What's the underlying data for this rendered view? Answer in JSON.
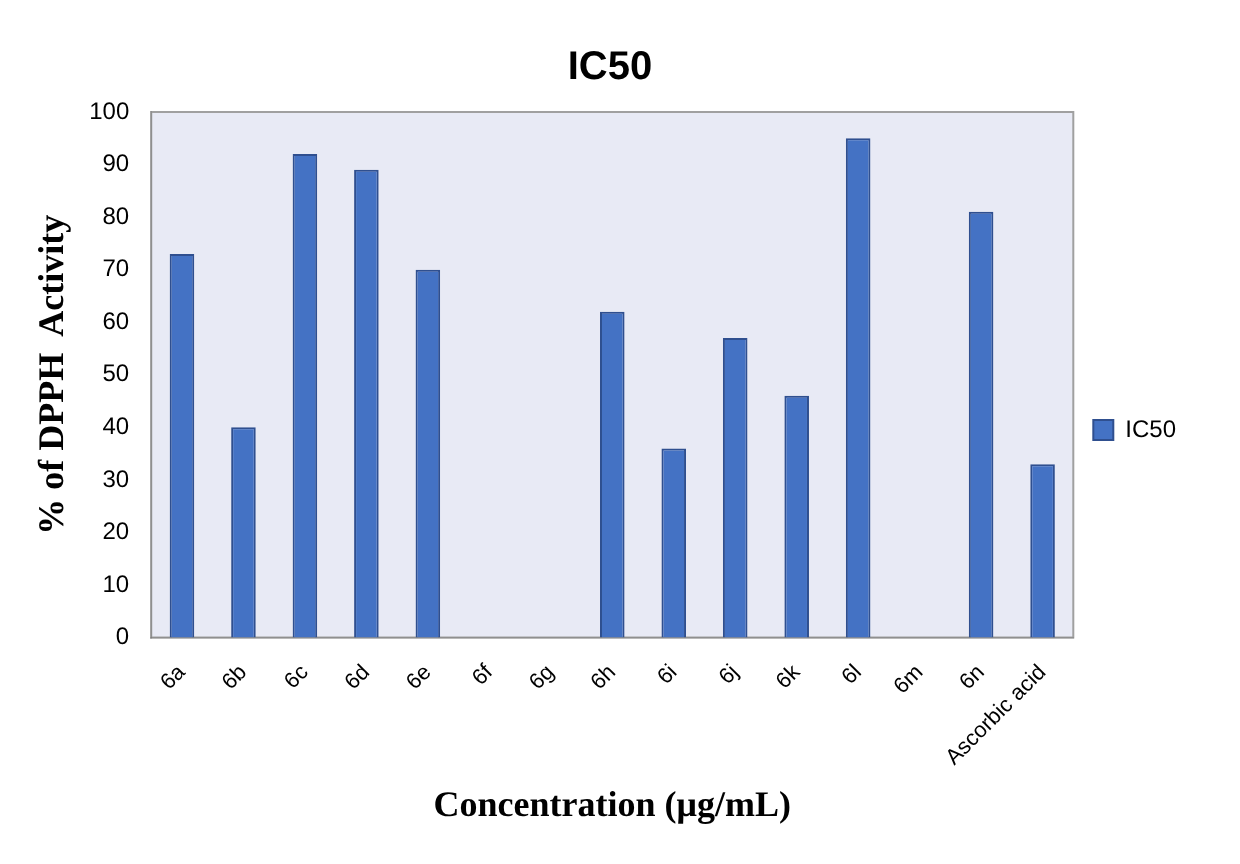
{
  "chart_data": {
    "type": "bar",
    "title": "IC50",
    "xlabel": "Concentration (μg/mL)",
    "ylabel": "% of DPPH  Activity",
    "categories": [
      "6a",
      "6b",
      "6c",
      "6d",
      "6e",
      "6f",
      "6g",
      "6h",
      "6i",
      "6j",
      "6k",
      "6l",
      "6m",
      "6n",
      "Ascorbic acid"
    ],
    "series": [
      {
        "name": "IC50",
        "color": "#4472c4",
        "values": [
          73,
          40,
          92,
          89,
          70,
          0,
          0,
          62,
          36,
          57,
          46,
          95,
          0,
          81,
          33
        ]
      }
    ],
    "ylim": [
      0,
      100
    ],
    "yticks": [
      0,
      10,
      20,
      30,
      40,
      50,
      60,
      70,
      80,
      90,
      100
    ],
    "grid": false,
    "legend": "right"
  }
}
